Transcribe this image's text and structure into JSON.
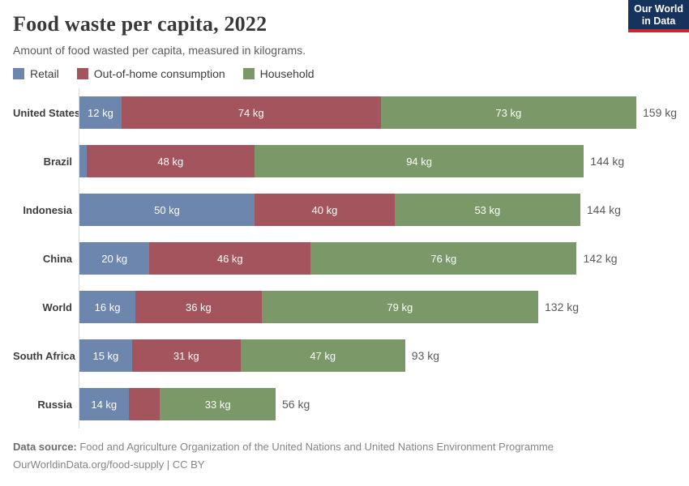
{
  "header": {
    "title": "Food waste per capita, 2022",
    "subtitle": "Amount of food wasted per capita, measured in kilograms.",
    "logo": {
      "line1": "Our World",
      "line2": "in Data"
    }
  },
  "colors": {
    "retail": "#6d86ad",
    "out_of_home": "#a4545c",
    "household": "#7b9869",
    "logo_bg": "#15335d",
    "logo_underline": "#c8282d",
    "axis_line": "#d9d9d9"
  },
  "chart_data": {
    "type": "bar",
    "orientation": "horizontal",
    "stacked": true,
    "grid": false,
    "legend_position": "top",
    "xmax": 159,
    "unit": "kg",
    "categories": [
      "United States",
      "Brazil",
      "Indonesia",
      "China",
      "World",
      "South Africa",
      "Russia"
    ],
    "series": [
      {
        "name": "Retail",
        "color": "#6d86ad",
        "values": [
          12,
          2,
          50,
          20,
          16,
          15,
          14
        ],
        "labels": [
          "12 kg",
          "",
          "50 kg",
          "20 kg",
          "16 kg",
          "15 kg",
          "14 kg"
        ]
      },
      {
        "name": "Out-of-home consumption",
        "color": "#a4545c",
        "values": [
          74,
          48,
          40,
          46,
          36,
          31,
          9
        ],
        "labels": [
          "74 kg",
          "48 kg",
          "40 kg",
          "46 kg",
          "36 kg",
          "31 kg",
          ""
        ]
      },
      {
        "name": "Household",
        "color": "#7b9869",
        "values": [
          73,
          94,
          53,
          76,
          79,
          47,
          33
        ],
        "labels": [
          "73 kg",
          "94 kg",
          "53 kg",
          "76 kg",
          "79 kg",
          "47 kg",
          "33 kg"
        ]
      }
    ],
    "totals": [
      "159 kg",
      "144 kg",
      "144 kg",
      "142 kg",
      "132 kg",
      "93 kg",
      "56 kg"
    ]
  },
  "footer": {
    "source_label": "Data source:",
    "source_text": " Food and Agriculture Organization of the United Nations and United Nations Environment Programme",
    "link_line": "OurWorldinData.org/food-supply | CC BY"
  }
}
